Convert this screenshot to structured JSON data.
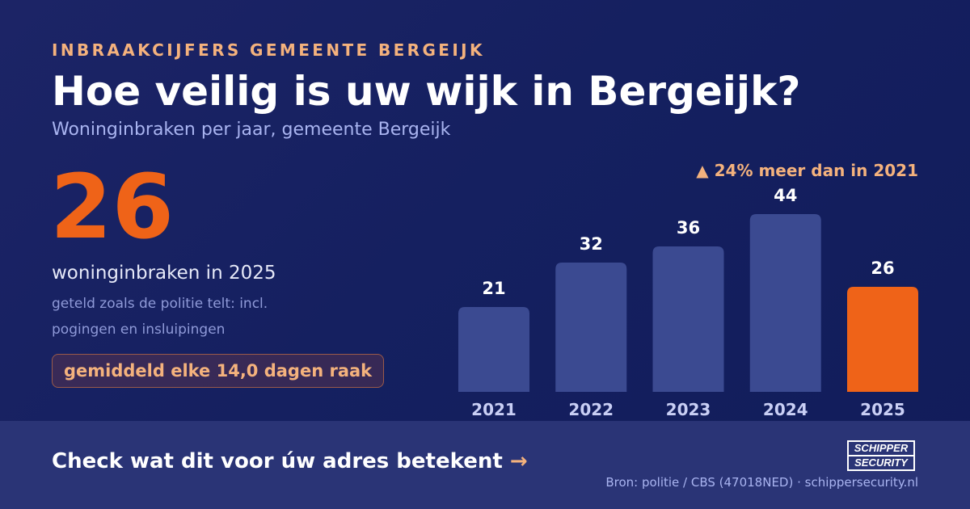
{
  "header": {
    "eyebrow": "INBRAAKCIJFERS GEMEENTE BERGEIJK",
    "title": "Hoe veilig is uw wijk in Bergeijk?",
    "subtitle": "Woninginbraken per jaar, gemeente Bergeijk"
  },
  "highlight": {
    "number": "26",
    "label": "woninginbraken in 2025",
    "note_line1": "geteld zoals de politie telt: incl.",
    "note_line2": "pogingen en insluipingen",
    "pill": "gemiddeld elke 14,0 dagen raak"
  },
  "change_note": "▲ 24% meer dan in 2021",
  "chart_data": {
    "type": "bar",
    "categories": [
      "2021",
      "2022",
      "2023",
      "2024",
      "2025"
    ],
    "values": [
      21,
      32,
      36,
      44,
      26
    ],
    "title": "",
    "xlabel": "",
    "ylabel": "",
    "ylim": [
      0,
      44
    ],
    "grid": false,
    "legend": "none",
    "colors": {
      "default": "#3b4a91",
      "highlight": "#ef6318",
      "highlight_category": "2025",
      "value_label": "#ffffff",
      "category_label": "#c9cff5"
    }
  },
  "footer": {
    "cta": "Check wat dit voor úw adres betekent",
    "cta_arrow": "→",
    "source": "Bron: politie / CBS (47018NED) · schippersecurity.nl",
    "logo_line1": "SCHIPPER",
    "logo_line2": "SECURITY"
  }
}
